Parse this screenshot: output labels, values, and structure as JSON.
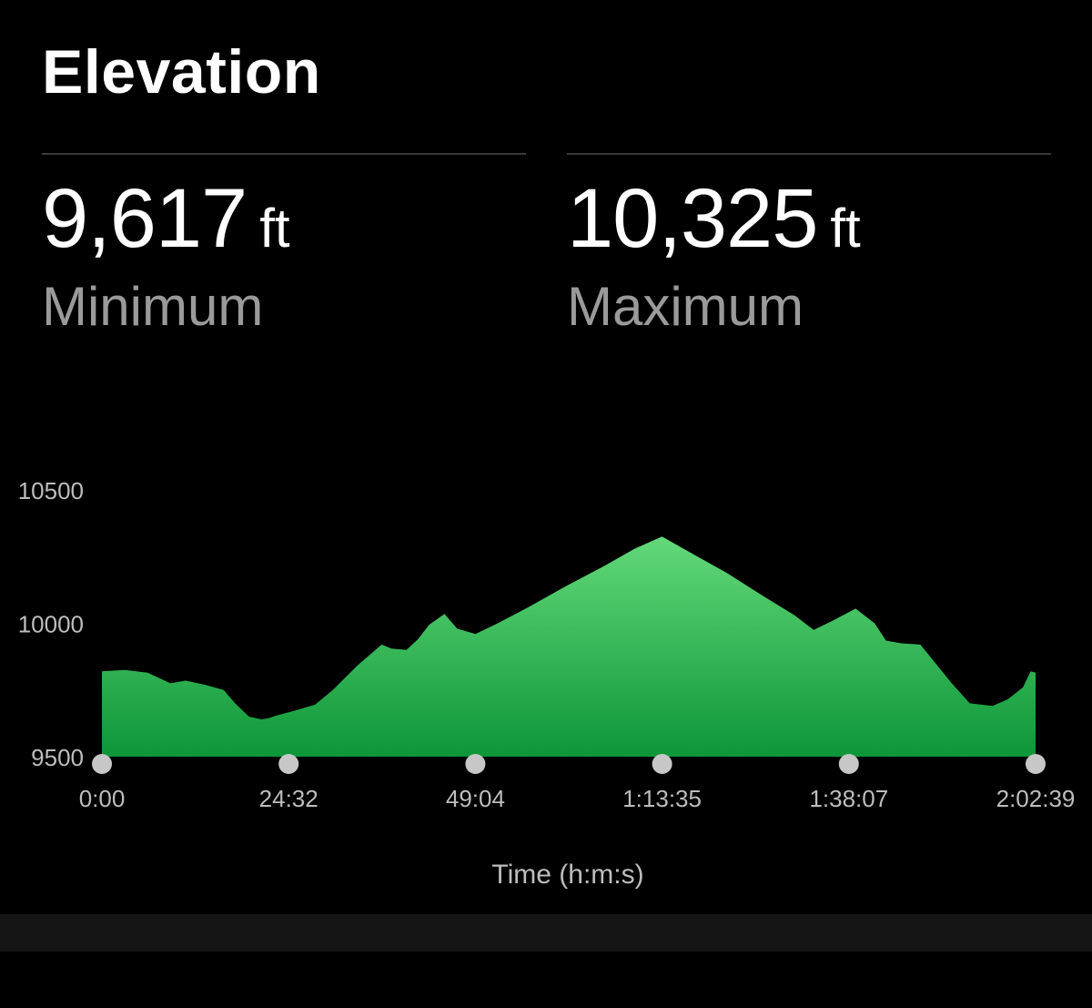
{
  "header": {
    "title": "Elevation"
  },
  "stats": {
    "minimum": {
      "value": "9,617",
      "unit": "ft",
      "label": "Minimum"
    },
    "maximum": {
      "value": "10,325",
      "unit": "ft",
      "label": "Maximum"
    }
  },
  "colors": {
    "background": "#000000",
    "area_top": "#63d97a",
    "area_bottom": "#0d9638",
    "marker": "#c7c7c7",
    "axis_text": "#bdbdbd"
  },
  "chart_data": {
    "type": "area",
    "title": "",
    "xlabel": "Time (h:m:s)",
    "ylabel": "",
    "x_ticks": [
      "0:00",
      "24:32",
      "49:04",
      "1:13:35",
      "1:38:07",
      "2:02:39"
    ],
    "y_ticks": [
      10500,
      10000,
      9500
    ],
    "ylim": [
      9500,
      10500
    ],
    "xlim": [
      0,
      7359
    ],
    "series": [
      {
        "x": [
          "0:00",
          "3:00",
          "6:00",
          "9:00",
          "11:00",
          "13:30",
          "16:00",
          "17:30",
          "19:20",
          "21:00",
          "22:00",
          "23:00",
          "25:00",
          "28:00",
          "30:20",
          "33:30",
          "36:45",
          "38:00",
          "40:00",
          "41:30",
          "43:00",
          "45:00",
          "46:40",
          "49:04",
          "52:00",
          "56:00",
          "1:01:00",
          "1:06:00",
          "1:10:00",
          "1:13:35",
          "1:17:00",
          "1:22:00",
          "1:27:00",
          "1:31:00",
          "1:33:30",
          "1:36:00",
          "1:39:00",
          "1:41:30",
          "1:43:00",
          "1:45:00",
          "1:47:30",
          "1:49:30",
          "1:51:30",
          "1:54:00",
          "1:57:00",
          "1:59:00",
          "2:01:00",
          "2:02:00",
          "2:02:39"
        ],
        "y": [
          9820,
          9825,
          9815,
          9775,
          9785,
          9770,
          9750,
          9700,
          9650,
          9640,
          9645,
          9655,
          9670,
          9695,
          9750,
          9840,
          9920,
          9905,
          9900,
          9940,
          9995,
          10035,
          9980,
          9960,
          10000,
          10060,
          10140,
          10215,
          10280,
          10325,
          10270,
          10190,
          10100,
          10030,
          9975,
          10010,
          10055,
          10000,
          9935,
          9925,
          9920,
          9850,
          9780,
          9700,
          9690,
          9715,
          9760,
          9820,
          9815
        ]
      }
    ]
  }
}
